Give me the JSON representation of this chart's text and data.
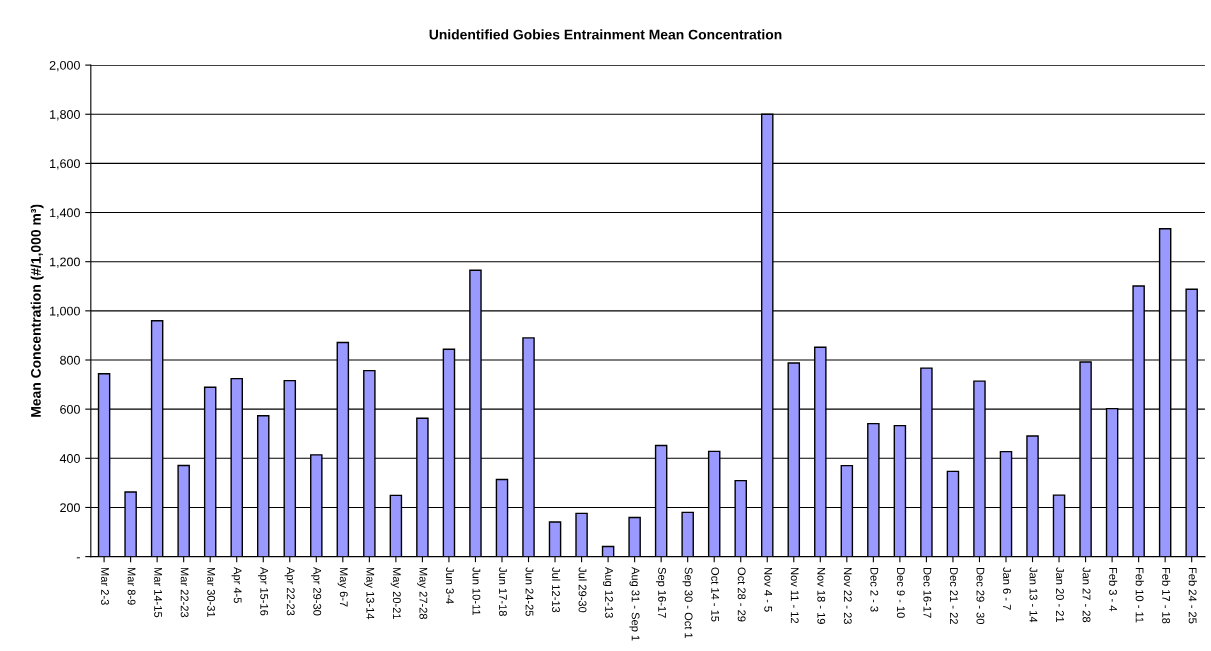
{
  "chart_data": {
    "type": "bar",
    "title": "Unidentified Gobies Entrainment Mean Concentration",
    "ylabel": "Mean Concentration (#/1,000 m³)",
    "categories": [
      "Mar 2-3",
      "Mar 8-9",
      "Mar 14-15",
      "Mar 22-23",
      "Mar 30-31",
      "Apr 4-5",
      "Apr 15-16",
      "Apr 22-23",
      "Apr 29-30",
      "May 6-7",
      "May 13-14",
      "May 20-21",
      "May 27-28",
      "Jun 3-4",
      "Jun 10-11",
      "Jun 17-18",
      "Jun 24-25",
      "Jul 12-13",
      "Jul 29-30",
      "Aug 12-13",
      "Aug 31 - Sep 1",
      "Sep 16-17",
      "Sep 30 - Oct 1",
      "Oct 14 - 15",
      "Oct 28 - 29",
      "Nov 4 - 5",
      "Nov 11 - 12",
      "Nov 18 - 19",
      "Nov 22 - 23",
      "Dec 2 - 3",
      "Dec 9 - 10",
      "Dec 16-17",
      "Dec 21 - 22",
      "Dec 29 - 30",
      "Jan 6 - 7",
      "Jan 13 - 14",
      "Jan 20 - 21",
      "Jan 27 - 28",
      "Feb 3 - 4",
      "Feb 10 - 11",
      "Feb 17 - 18",
      "Feb 24 - 25"
    ],
    "values": [
      744,
      263,
      960,
      371,
      689,
      724,
      573,
      716,
      414,
      871,
      757,
      249,
      563,
      844,
      1165,
      314,
      890,
      141,
      176,
      41,
      159,
      452,
      180,
      428,
      309,
      1800,
      788,
      852,
      370,
      541,
      533,
      767,
      347,
      714,
      427,
      491,
      250,
      792,
      602,
      1101,
      1334,
      1088
    ],
    "color": "#9999ff",
    "ylim": [
      0,
      2000
    ],
    "yticks": [
      {
        "value": 0,
        "label": "-"
      },
      {
        "value": 200,
        "label": "200"
      },
      {
        "value": 400,
        "label": "400"
      },
      {
        "value": 600,
        "label": "600"
      },
      {
        "value": 800,
        "label": "800"
      },
      {
        "value": 1000,
        "label": "1,000"
      },
      {
        "value": 1200,
        "label": "1,200"
      },
      {
        "value": 1400,
        "label": "1,400"
      },
      {
        "value": 1600,
        "label": "1,600"
      },
      {
        "value": 1800,
        "label": "1,800"
      },
      {
        "value": 2000,
        "label": "2,000"
      }
    ],
    "grid": "y"
  }
}
